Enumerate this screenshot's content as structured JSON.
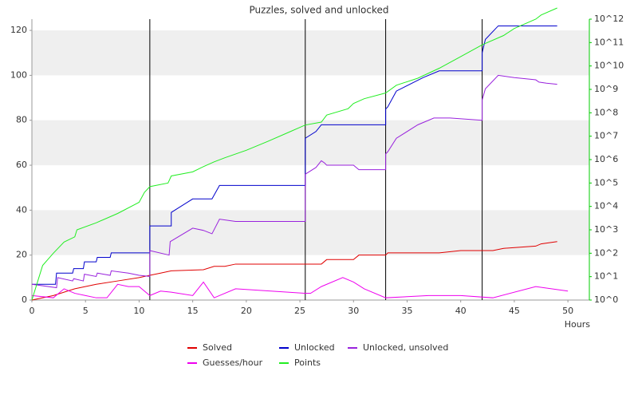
{
  "chart_data": {
    "type": "line",
    "title": "Puzzles, solved and unlocked",
    "xlabel": "Hours",
    "xlim": [
      0,
      52
    ],
    "xticks": [
      0,
      5,
      10,
      15,
      20,
      25,
      30,
      35,
      40,
      45,
      50
    ],
    "ylim": [
      0,
      125
    ],
    "yticks": [
      0,
      20,
      40,
      60,
      80,
      100,
      120
    ],
    "y2lim": [
      1,
      1000000000000.0
    ],
    "y2scale": "log",
    "y2color": "#00cc00",
    "y2ticks": [
      {
        "value": 1,
        "label": "10^0"
      },
      {
        "value": 10,
        "label": "10^1"
      },
      {
        "value": 100,
        "label": "10^2"
      },
      {
        "value": 1000,
        "label": "10^3"
      },
      {
        "value": 10000,
        "label": "10^4"
      },
      {
        "value": 100000,
        "label": "10^5"
      },
      {
        "value": 1000000,
        "label": "10^6"
      },
      {
        "value": 10000000,
        "label": "10^7"
      },
      {
        "value": 100000000,
        "label": "10^8"
      },
      {
        "value": 1000000000,
        "label": "10^9"
      },
      {
        "value": 10000000000,
        "label": "10^10"
      },
      {
        "value": 100000000000,
        "label": "10^11"
      },
      {
        "value": 1000000000000,
        "label": "10^12"
      }
    ],
    "grid": "bands",
    "legend": "bottom",
    "vlines": [
      11,
      25.5,
      33,
      42
    ],
    "series": [
      {
        "name": "Solved",
        "color": "#e00000",
        "x": [
          0,
          2,
          4,
          6,
          8,
          10,
          11,
          12,
          13,
          16,
          17,
          18,
          19,
          25.5,
          27,
          27.5,
          30,
          30.5,
          33,
          33.2,
          38,
          40,
          43,
          44,
          47,
          47.5,
          49
        ],
        "values": [
          0,
          2,
          5,
          7,
          8.5,
          10,
          11,
          12,
          13,
          13.5,
          15,
          15,
          16,
          16,
          16,
          18,
          18,
          20,
          20,
          21,
          21,
          22,
          22,
          23,
          24,
          25,
          26
        ]
      },
      {
        "name": "Unlocked",
        "color": "#0000cc",
        "x": [
          0,
          2.2,
          2.3,
          3.8,
          3.9,
          4.8,
          4.9,
          6,
          6.1,
          7.3,
          7.4,
          11,
          11,
          13,
          13,
          15,
          16.8,
          17.5,
          25.5,
          25.5,
          26.5,
          27,
          33,
          33,
          33.2,
          34,
          36.5,
          38,
          42,
          42,
          42.3,
          43.5,
          49
        ],
        "values": [
          7,
          7,
          12,
          12,
          14,
          14,
          17,
          17,
          19,
          19,
          21,
          21,
          33,
          33,
          39,
          45,
          45,
          51,
          51,
          72,
          75,
          78,
          78,
          85,
          86,
          93,
          99,
          102,
          102,
          110,
          116,
          122,
          122
        ]
      },
      {
        "name": "Unlocked, unsolved",
        "color": "#9922dd",
        "x": [
          0,
          2.3,
          2.4,
          3.8,
          3.9,
          4.8,
          4.9,
          6,
          6.1,
          7.3,
          7.4,
          9,
          10,
          11,
          11,
          12.8,
          12.9,
          15,
          16,
          16.8,
          17.5,
          19,
          25.5,
          25.5,
          26.5,
          27,
          27.3,
          27.5,
          30,
          30.5,
          33,
          33,
          33.2,
          34,
          36,
          37.5,
          39,
          42,
          42,
          42.3,
          43.5,
          45,
          47,
          47.3,
          48,
          49
        ],
        "values": [
          7,
          5.5,
          10,
          8.5,
          9.5,
          8.5,
          11.5,
          10.5,
          12,
          11,
          13,
          12,
          11,
          10.5,
          22,
          20,
          26,
          32,
          31,
          29.5,
          36,
          35,
          35,
          56,
          59,
          62,
          61,
          60,
          60,
          58,
          58,
          65,
          66,
          72,
          78,
          81,
          81,
          80,
          89,
          94,
          100,
          99,
          98,
          97,
          96.5,
          96
        ]
      },
      {
        "name": "Guesses/hour",
        "color": "#ee00ee",
        "x": [
          0,
          2,
          3,
          4,
          5,
          6,
          7,
          8,
          9,
          10,
          11,
          12,
          13,
          15,
          16,
          17,
          19,
          25.5,
          26,
          27,
          29,
          30,
          31,
          33,
          35,
          37,
          40,
          43,
          47,
          50
        ],
        "values": [
          2,
          1,
          5,
          3,
          2,
          1,
          1,
          7,
          6,
          6,
          2,
          4,
          3.5,
          2,
          8,
          1,
          5,
          3,
          3,
          6,
          10,
          8,
          5,
          1,
          1.5,
          2,
          2,
          1,
          6,
          4
        ]
      },
      {
        "name": "Points",
        "color": "#22ee22",
        "axis": "y2",
        "x": [
          0,
          1,
          2,
          3,
          4,
          4.2,
          6,
          8,
          10,
          10.5,
          11,
          12.7,
          13,
          15,
          16,
          17,
          18,
          20,
          22,
          24,
          25.5,
          27,
          27.5,
          29.5,
          30,
          31,
          33,
          34,
          36,
          38,
          40,
          42,
          44,
          45,
          47,
          47.5,
          49
        ],
        "values": [
          1,
          30,
          100,
          300,
          500,
          1000,
          2000,
          5000,
          15000,
          40000,
          70000,
          100000,
          200000,
          300000,
          500000,
          800000,
          1200000,
          2500000,
          6000000,
          15000000,
          30000000,
          40000000,
          80000000,
          150000000,
          250000000,
          400000000,
          700000000,
          1500000000,
          3000000000,
          8000000000,
          25000000000,
          80000000000,
          200000000000,
          400000000000,
          1000000000000,
          1500000000000,
          3000000000000
        ]
      }
    ]
  }
}
